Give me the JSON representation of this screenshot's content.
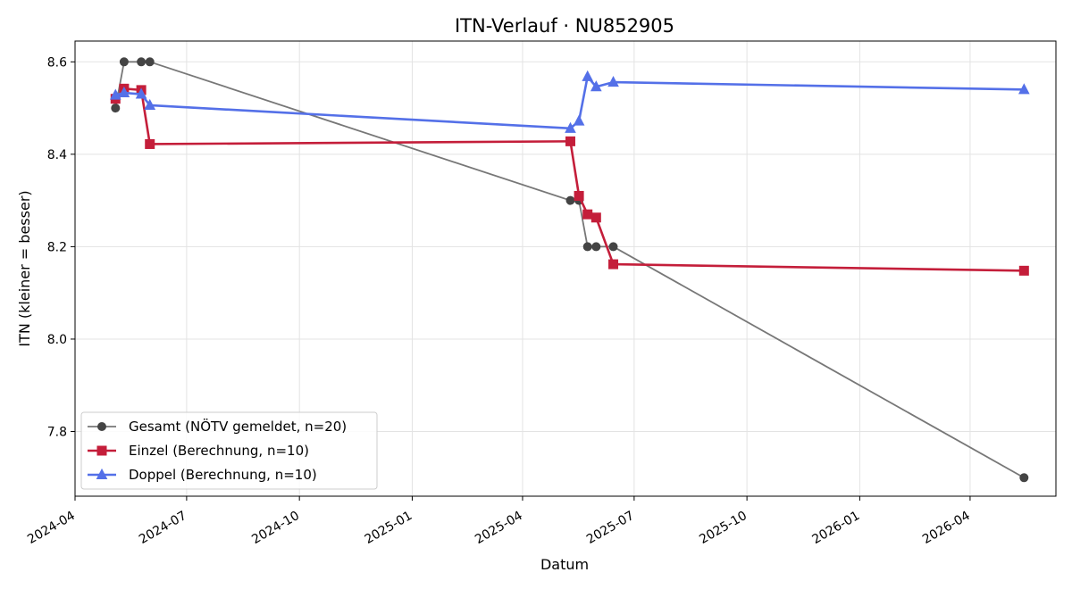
{
  "chart_data": {
    "type": "line",
    "title": "ITN-Verlauf · NU852905",
    "xlabel": "Datum",
    "ylabel": "ITN  (kleiner = besser)",
    "x_axis_type": "date",
    "xlim": [
      "2024-04-01",
      "2026-06-10"
    ],
    "ylim": [
      7.66,
      8.645
    ],
    "x_ticks": [
      "2024-04",
      "2024-07",
      "2024-10",
      "2025-01",
      "2025-04",
      "2025-07",
      "2025-10",
      "2026-01",
      "2026-04"
    ],
    "y_ticks": [
      7.8,
      8.0,
      8.2,
      8.4,
      8.6
    ],
    "grid": true,
    "legend_position": "lower-left",
    "series": [
      {
        "name": "Gesamt (NÖTV gemeldet, n=20)",
        "color": "#777777",
        "marker": "circle",
        "x": [
          "2024-05-04",
          "2024-05-11",
          "2024-05-25",
          "2024-06-01",
          "2025-05-10",
          "2025-05-17",
          "2025-05-24",
          "2025-05-31",
          "2025-06-14",
          "2026-05-15"
        ],
        "y": [
          8.5,
          8.6,
          8.6,
          8.6,
          8.3,
          8.3,
          8.2,
          8.2,
          8.2,
          7.7
        ]
      },
      {
        "name": "Einzel (Berechnung, n=10)",
        "color": "#c41e3a",
        "marker": "square",
        "x": [
          "2024-05-04",
          "2024-05-11",
          "2024-05-25",
          "2024-06-01",
          "2025-05-10",
          "2025-05-17",
          "2025-05-24",
          "2025-05-31",
          "2025-06-14",
          "2026-05-15"
        ],
        "y": [
          8.52,
          8.542,
          8.539,
          8.422,
          8.428,
          8.31,
          8.27,
          8.263,
          8.162,
          8.148
        ]
      },
      {
        "name": "Doppel (Berechnung, n=10)",
        "color": "#5470e8",
        "marker": "triangle",
        "x": [
          "2024-05-04",
          "2024-05-11",
          "2024-05-25",
          "2024-06-01",
          "2025-05-10",
          "2025-05-17",
          "2025-05-24",
          "2025-05-31",
          "2025-06-14",
          "2026-05-15"
        ],
        "y": [
          8.528,
          8.533,
          8.53,
          8.506,
          8.456,
          8.472,
          8.568,
          8.546,
          8.556,
          8.54
        ]
      }
    ]
  }
}
